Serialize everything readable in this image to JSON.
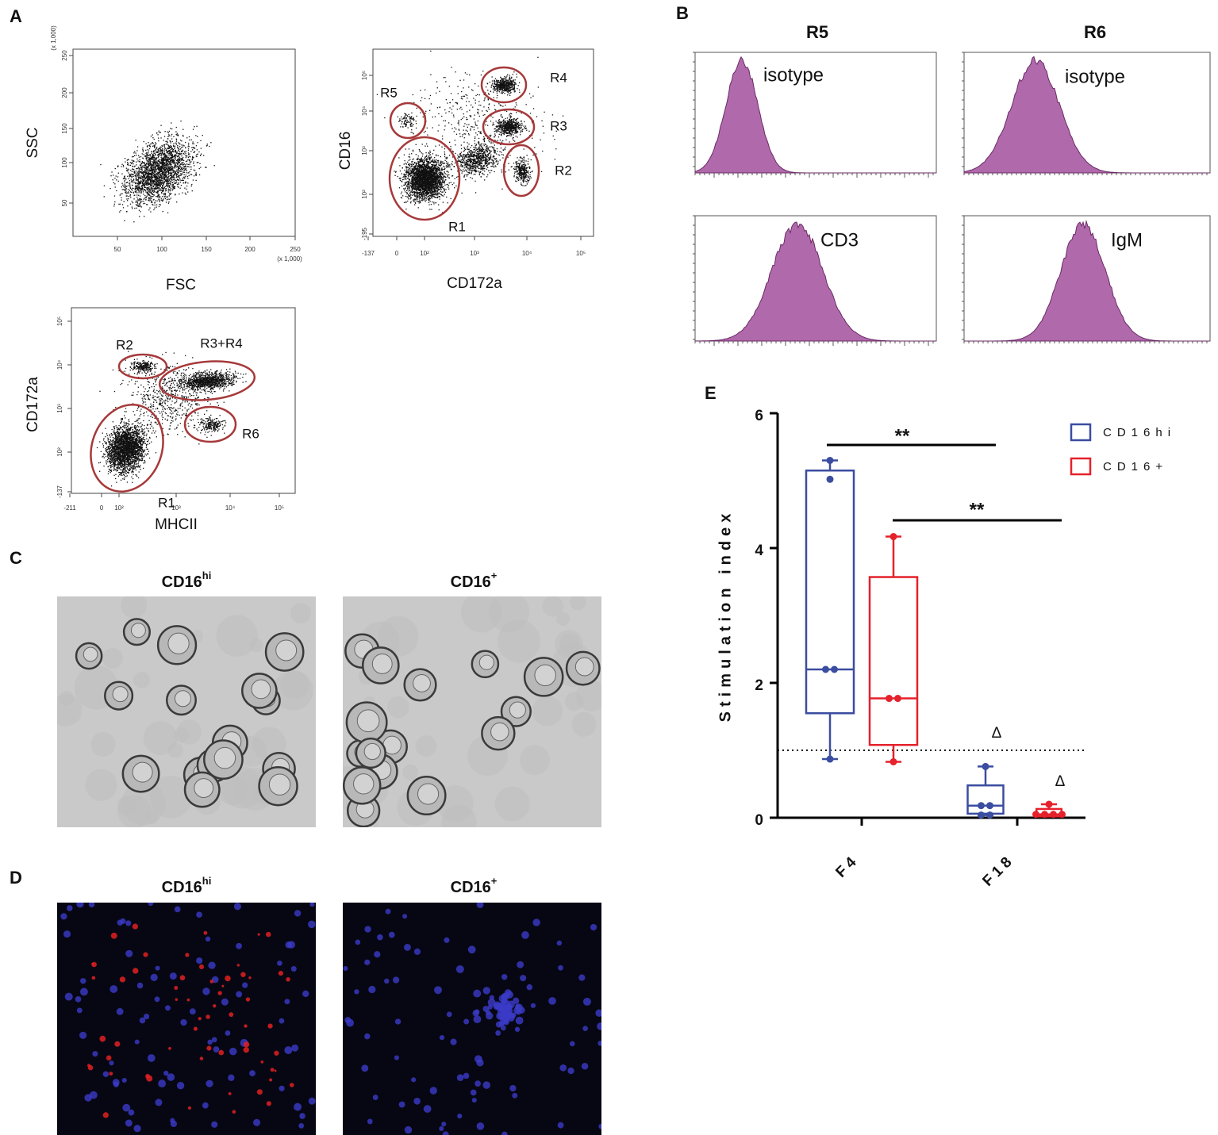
{
  "panel_labels": [
    "A",
    "B",
    "C",
    "D",
    "E"
  ],
  "panel_a": {
    "plots": [
      {
        "x_label": "FSC",
        "y_label": "SSC",
        "x_ticks": [
          "50",
          "100",
          "150",
          "200",
          "250"
        ],
        "y_ticks": [
          "50",
          "100",
          "150",
          "200",
          "250"
        ],
        "x_scale_note": "(x 1,000)",
        "y_scale_note": "(x 1,000)",
        "gates": []
      },
      {
        "x_label": "CD172a",
        "y_label": "CD16",
        "x_ticks": [
          "-137",
          "0",
          "10²",
          "10³",
          "10⁴",
          "10⁵"
        ],
        "y_ticks": [
          "-195",
          "10²",
          "10³",
          "10⁴",
          "10⁵"
        ],
        "gates": [
          "R5",
          "R4",
          "R3",
          "R2",
          "R1"
        ]
      },
      {
        "x_label": "MHCII",
        "y_label": "CD172a",
        "x_ticks": [
          "-211",
          "0",
          "10²",
          "10³",
          "10⁴",
          "10⁵"
        ],
        "y_ticks": [
          "-137",
          "10²",
          "10³",
          "10⁴",
          "10⁵"
        ],
        "gates": [
          "R2",
          "R3+R4",
          "R6",
          "R1"
        ]
      }
    ]
  },
  "panel_b": {
    "columns": [
      "R5",
      "R6"
    ],
    "histograms": [
      "isotype",
      "isotype",
      "CD3",
      "IgM"
    ]
  },
  "panel_c": {
    "titles": [
      {
        "base": "CD16",
        "sup": "hi"
      },
      {
        "base": "CD16",
        "sup": "+"
      }
    ]
  },
  "panel_d": {
    "titles": [
      {
        "base": "CD16",
        "sup": "hi"
      },
      {
        "base": "CD16",
        "sup": "+"
      }
    ]
  },
  "chart_data": {
    "type": "box",
    "y_label": "Stimulation index",
    "categories": [
      "F4",
      "F18"
    ],
    "ylim": [
      0,
      6
    ],
    "yticks": [
      0,
      2,
      4,
      6
    ],
    "reference_line": 1,
    "annotations": [
      "**",
      "**",
      "Δ",
      "Δ"
    ],
    "series": [
      {
        "name": "CD16hi",
        "color": "#3b4da0",
        "boxes": [
          {
            "min": 0.87,
            "q1": 1.55,
            "median": 2.2,
            "q3": 5.15,
            "max": 5.3,
            "points": [
              5.3,
              5.02,
              2.2,
              2.2,
              0.87
            ]
          },
          {
            "min": 0.04,
            "q1": 0.06,
            "median": 0.18,
            "q3": 0.48,
            "max": 0.76,
            "points": [
              0.76,
              0.18,
              0.18,
              0.04,
              0.04
            ]
          }
        ]
      },
      {
        "name": "CD16+",
        "color": "#e5212b",
        "boxes": [
          {
            "min": 0.83,
            "q1": 1.08,
            "median": 1.77,
            "q3": 3.57,
            "max": 4.17,
            "points": [
              4.17,
              1.77,
              1.77,
              0.83
            ]
          },
          {
            "min": 0.02,
            "q1": 0.02,
            "median": 0.05,
            "q3": 0.13,
            "max": 0.2,
            "points": [
              0.2,
              0.05,
              0.05,
              0.05,
              0.05
            ]
          }
        ]
      }
    ]
  }
}
